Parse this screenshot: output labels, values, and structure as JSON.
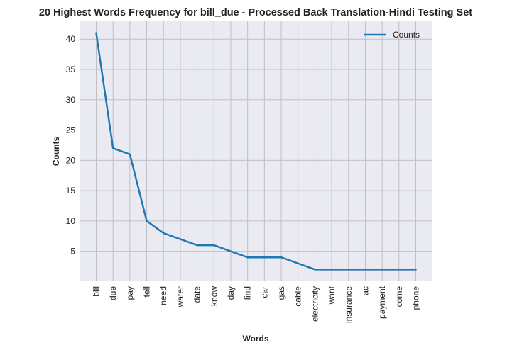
{
  "chart_data": {
    "type": "line",
    "title": "20 Highest Words Frequency for bill_due - Processed Back Translation-Hindi Testing Set",
    "xlabel": "Words",
    "ylabel": "Counts",
    "categories": [
      "bill",
      "due",
      "pay",
      "tell",
      "need",
      "water",
      "date",
      "know",
      "day",
      "find",
      "car",
      "gas",
      "cable",
      "electricity",
      "want",
      "insurance",
      "ac",
      "payment",
      "come",
      "phone"
    ],
    "series": [
      {
        "name": "Counts",
        "values": [
          41,
          22,
          21,
          10,
          8,
          7,
          6,
          6,
          5,
          4,
          4,
          4,
          3,
          2,
          2,
          2,
          2,
          2,
          2,
          2
        ],
        "color": "#1f77b4"
      }
    ],
    "yticks": [
      5,
      10,
      15,
      20,
      25,
      30,
      35,
      40
    ],
    "ylim": [
      0.05,
      42.95
    ],
    "grid": true,
    "legend": "top-right",
    "background": "#eaeaf2",
    "grid_color": "#c0c0c0"
  }
}
